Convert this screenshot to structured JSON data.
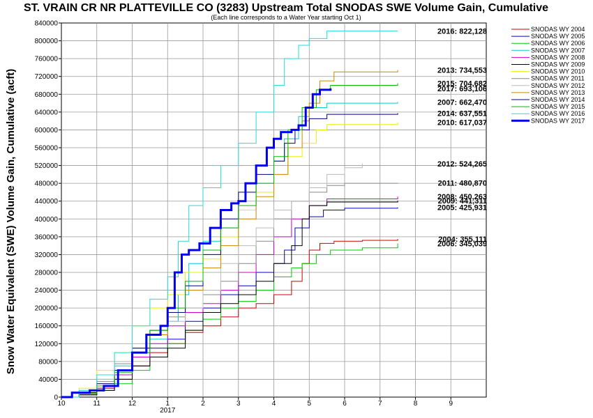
{
  "chart_data": {
    "type": "line",
    "title": "ST. VRAIN CR NR PLATTEVILLE CO (3283) Upstream Total SNODAS SWE Volume Gain, Cumulative",
    "subtitle": "(Each line corresponds to a Water Year starting Oct 1)",
    "ylabel": "Snow Water Equivalent (SWE) Volume Gain, Cumulative (acft)",
    "xlabel": "",
    "x_tick_labels": [
      "10",
      "11",
      "12",
      "1",
      "2",
      "3",
      "4",
      "5",
      "6",
      "7",
      "8",
      "9"
    ],
    "x_year_label": "2017",
    "ylim": [
      0,
      840000
    ],
    "y_ticks": [
      "0",
      "40000",
      "80000",
      "120000",
      "160000",
      "200000",
      "240000",
      "280000",
      "320000",
      "360000",
      "400000",
      "440000",
      "480000",
      "520000",
      "560000",
      "600000",
      "640000",
      "680000",
      "720000",
      "760000",
      "800000",
      "840000"
    ],
    "grid": "horizontal",
    "legend_position": "right",
    "series": [
      {
        "name": "SNODAS WY 2004",
        "color": "#cc0000",
        "width": 1,
        "end_label": "2004: 355,111",
        "points": [
          [
            0.0,
            0
          ],
          [
            0.5,
            5000
          ],
          [
            1.0,
            20000
          ],
          [
            1.5,
            40000
          ],
          [
            2.0,
            70000
          ],
          [
            2.5,
            100000
          ],
          [
            3.0,
            120000
          ],
          [
            3.5,
            145000
          ],
          [
            4.0,
            160000
          ],
          [
            4.5,
            180000
          ],
          [
            5.0,
            200000
          ],
          [
            5.5,
            210000
          ],
          [
            6.0,
            230000
          ],
          [
            6.5,
            260000
          ],
          [
            6.8,
            300000
          ],
          [
            7.0,
            330000
          ],
          [
            7.3,
            345000
          ],
          [
            7.7,
            350000
          ],
          [
            8.5,
            352000
          ],
          [
            9.5,
            355111
          ]
        ]
      },
      {
        "name": "SNODAS WY 2005",
        "color": "#0000cc",
        "width": 1,
        "end_label": "2005: 425,931",
        "points": [
          [
            0.0,
            0
          ],
          [
            0.5,
            10000
          ],
          [
            1.0,
            25000
          ],
          [
            1.5,
            50000
          ],
          [
            2.0,
            90000
          ],
          [
            2.5,
            110000
          ],
          [
            3.0,
            130000
          ],
          [
            3.5,
            170000
          ],
          [
            4.0,
            200000
          ],
          [
            4.5,
            230000
          ],
          [
            5.0,
            250000
          ],
          [
            5.5,
            280000
          ],
          [
            6.0,
            300000
          ],
          [
            6.3,
            330000
          ],
          [
            6.6,
            380000
          ],
          [
            7.0,
            405000
          ],
          [
            7.4,
            420000
          ],
          [
            8.0,
            424000
          ],
          [
            9.5,
            425931
          ]
        ]
      },
      {
        "name": "SNODAS WY 2006",
        "color": "#00cc00",
        "width": 1,
        "end_label": "2006: 345,039",
        "points": [
          [
            0.0,
            0
          ],
          [
            0.5,
            5000
          ],
          [
            1.0,
            15000
          ],
          [
            1.5,
            30000
          ],
          [
            2.0,
            60000
          ],
          [
            2.5,
            90000
          ],
          [
            3.0,
            120000
          ],
          [
            3.5,
            150000
          ],
          [
            4.0,
            175000
          ],
          [
            4.5,
            200000
          ],
          [
            5.0,
            215000
          ],
          [
            5.5,
            240000
          ],
          [
            6.0,
            270000
          ],
          [
            6.5,
            290000
          ],
          [
            6.8,
            300000
          ],
          [
            7.2,
            320000
          ],
          [
            7.6,
            330000
          ],
          [
            8.5,
            335000
          ],
          [
            9.5,
            345039
          ]
        ]
      },
      {
        "name": "SNODAS WY 2007",
        "color": "#00cccc",
        "width": 1,
        "end_label": "2007: 662,470",
        "points": [
          [
            0.0,
            0
          ],
          [
            0.5,
            15000
          ],
          [
            1.0,
            40000
          ],
          [
            1.5,
            70000
          ],
          [
            2.0,
            100000
          ],
          [
            2.5,
            130000
          ],
          [
            3.0,
            170000
          ],
          [
            3.3,
            230000
          ],
          [
            3.6,
            300000
          ],
          [
            4.0,
            350000
          ],
          [
            4.5,
            380000
          ],
          [
            5.0,
            420000
          ],
          [
            5.5,
            480000
          ],
          [
            6.0,
            530000
          ],
          [
            6.3,
            580000
          ],
          [
            6.7,
            630000
          ],
          [
            7.0,
            650000
          ],
          [
            7.5,
            660000
          ],
          [
            9.5,
            662470
          ]
        ]
      },
      {
        "name": "SNODAS WY 2008",
        "color": "#cc00cc",
        "width": 1,
        "end_label": "2008: 450,263",
        "points": [
          [
            0.0,
            0
          ],
          [
            0.5,
            8000
          ],
          [
            1.0,
            20000
          ],
          [
            1.5,
            50000
          ],
          [
            2.0,
            90000
          ],
          [
            2.5,
            120000
          ],
          [
            3.0,
            160000
          ],
          [
            3.5,
            190000
          ],
          [
            4.0,
            210000
          ],
          [
            4.5,
            240000
          ],
          [
            5.0,
            280000
          ],
          [
            5.5,
            320000
          ],
          [
            6.0,
            360000
          ],
          [
            6.5,
            400000
          ],
          [
            7.0,
            430000
          ],
          [
            7.5,
            445000
          ],
          [
            9.5,
            450263
          ]
        ]
      },
      {
        "name": "SNODAS WY 2009",
        "color": "#000000",
        "width": 1,
        "end_label": "2009: 441,311",
        "points": [
          [
            0.0,
            0
          ],
          [
            0.5,
            5000
          ],
          [
            1.0,
            15000
          ],
          [
            1.5,
            40000
          ],
          [
            2.0,
            70000
          ],
          [
            2.5,
            90000
          ],
          [
            3.0,
            110000
          ],
          [
            3.5,
            150000
          ],
          [
            4.0,
            190000
          ],
          [
            4.5,
            210000
          ],
          [
            5.0,
            230000
          ],
          [
            5.5,
            260000
          ],
          [
            6.0,
            300000
          ],
          [
            6.5,
            340000
          ],
          [
            6.8,
            400000
          ],
          [
            7.0,
            430000
          ],
          [
            7.5,
            438000
          ],
          [
            9.5,
            441311
          ]
        ]
      },
      {
        "name": "SNODAS WY 2010",
        "color": "#eeee00",
        "width": 1,
        "end_label": "2010: 617,037",
        "points": [
          [
            0.0,
            0
          ],
          [
            0.5,
            20000
          ],
          [
            1.0,
            60000
          ],
          [
            1.5,
            100000
          ],
          [
            2.0,
            160000
          ],
          [
            2.5,
            200000
          ],
          [
            3.0,
            230000
          ],
          [
            3.5,
            280000
          ],
          [
            4.0,
            310000
          ],
          [
            4.5,
            360000
          ],
          [
            5.0,
            420000
          ],
          [
            5.5,
            460000
          ],
          [
            6.0,
            500000
          ],
          [
            6.4,
            540000
          ],
          [
            6.8,
            570000
          ],
          [
            7.2,
            600000
          ],
          [
            7.5,
            612000
          ],
          [
            9.5,
            617037
          ]
        ]
      },
      {
        "name": "SNODAS WY 2011",
        "color": "#888888",
        "width": 1,
        "end_label": "2011: 480,870",
        "points": [
          [
            0.0,
            0
          ],
          [
            0.5,
            10000
          ],
          [
            1.0,
            35000
          ],
          [
            1.5,
            75000
          ],
          [
            2.0,
            110000
          ],
          [
            2.5,
            150000
          ],
          [
            3.0,
            180000
          ],
          [
            3.5,
            200000
          ],
          [
            4.0,
            230000
          ],
          [
            4.5,
            260000
          ],
          [
            5.0,
            300000
          ],
          [
            5.5,
            350000
          ],
          [
            6.0,
            400000
          ],
          [
            6.5,
            440000
          ],
          [
            7.0,
            460000
          ],
          [
            7.5,
            475000
          ],
          [
            8.0,
            480000
          ],
          [
            9.5,
            480870
          ]
        ]
      },
      {
        "name": "SNODAS WY 2012",
        "color": "#bbbbbb",
        "width": 1,
        "end_label": "2012: 524,265",
        "points": [
          [
            0.0,
            0
          ],
          [
            0.5,
            15000
          ],
          [
            1.0,
            40000
          ],
          [
            1.5,
            80000
          ],
          [
            2.0,
            110000
          ],
          [
            2.5,
            140000
          ],
          [
            3.0,
            170000
          ],
          [
            3.5,
            200000
          ],
          [
            4.0,
            240000
          ],
          [
            4.5,
            300000
          ],
          [
            5.0,
            340000
          ],
          [
            5.5,
            380000
          ],
          [
            6.0,
            420000
          ],
          [
            6.5,
            440000
          ],
          [
            7.0,
            470000
          ],
          [
            7.5,
            500000
          ],
          [
            8.0,
            515000
          ],
          [
            8.5,
            524265
          ]
        ]
      },
      {
        "name": "SNODAS WY 2013",
        "color": "#cc8800",
        "width": 1,
        "end_label": "2013: 734,553",
        "points": [
          [
            0.0,
            0
          ],
          [
            0.5,
            10000
          ],
          [
            1.0,
            30000
          ],
          [
            1.5,
            60000
          ],
          [
            2.0,
            100000
          ],
          [
            2.5,
            140000
          ],
          [
            3.0,
            190000
          ],
          [
            3.5,
            240000
          ],
          [
            4.0,
            290000
          ],
          [
            4.5,
            340000
          ],
          [
            5.0,
            400000
          ],
          [
            5.5,
            450000
          ],
          [
            6.0,
            500000
          ],
          [
            6.4,
            560000
          ],
          [
            6.8,
            620000
          ],
          [
            7.0,
            660000
          ],
          [
            7.3,
            710000
          ],
          [
            7.7,
            730000
          ],
          [
            9.5,
            734553
          ]
        ]
      },
      {
        "name": "SNODAS WY 2014",
        "color": "#00008b",
        "width": 1,
        "end_label": "2014: 637,551",
        "points": [
          [
            0.0,
            0
          ],
          [
            0.5,
            10000
          ],
          [
            1.0,
            30000
          ],
          [
            1.5,
            60000
          ],
          [
            2.0,
            110000
          ],
          [
            2.5,
            150000
          ],
          [
            3.0,
            190000
          ],
          [
            3.5,
            250000
          ],
          [
            4.0,
            320000
          ],
          [
            4.5,
            400000
          ],
          [
            5.0,
            460000
          ],
          [
            5.5,
            500000
          ],
          [
            6.0,
            530000
          ],
          [
            6.3,
            570000
          ],
          [
            6.6,
            600000
          ],
          [
            7.0,
            625000
          ],
          [
            7.5,
            635000
          ],
          [
            9.5,
            637551
          ]
        ]
      },
      {
        "name": "SNODAS WY 2015",
        "color": "#00bb00",
        "width": 1,
        "end_label": "2015: 704,682",
        "points": [
          [
            0.0,
            0
          ],
          [
            0.5,
            8000
          ],
          [
            1.0,
            25000
          ],
          [
            1.5,
            55000
          ],
          [
            2.0,
            100000
          ],
          [
            2.5,
            150000
          ],
          [
            3.0,
            200000
          ],
          [
            3.5,
            260000
          ],
          [
            4.0,
            330000
          ],
          [
            4.5,
            380000
          ],
          [
            5.0,
            430000
          ],
          [
            5.5,
            480000
          ],
          [
            6.0,
            540000
          ],
          [
            6.4,
            600000
          ],
          [
            6.8,
            650000
          ],
          [
            7.2,
            690000
          ],
          [
            7.6,
            700000
          ],
          [
            9.5,
            704682
          ]
        ]
      },
      {
        "name": "SNODAS WY 2016",
        "color": "#22dddd",
        "width": 1,
        "end_label": "2016: 822,128",
        "points": [
          [
            0.0,
            0
          ],
          [
            0.5,
            15000
          ],
          [
            1.0,
            50000
          ],
          [
            1.5,
            100000
          ],
          [
            2.0,
            160000
          ],
          [
            2.5,
            220000
          ],
          [
            3.0,
            270000
          ],
          [
            3.3,
            350000
          ],
          [
            3.6,
            430000
          ],
          [
            4.0,
            470000
          ],
          [
            4.5,
            520000
          ],
          [
            5.0,
            570000
          ],
          [
            5.5,
            640000
          ],
          [
            6.0,
            700000
          ],
          [
            6.3,
            760000
          ],
          [
            6.7,
            790000
          ],
          [
            7.0,
            805000
          ],
          [
            7.5,
            822128
          ],
          [
            9.5,
            822128
          ]
        ]
      },
      {
        "name": "SNODAS WY 2017",
        "color": "#0000ee",
        "width": 3,
        "end_label": "2017: 693,106",
        "points": [
          [
            0.0,
            0
          ],
          [
            0.3,
            10000
          ],
          [
            0.8,
            15000
          ],
          [
            1.2,
            25000
          ],
          [
            1.6,
            60000
          ],
          [
            2.0,
            100000
          ],
          [
            2.4,
            140000
          ],
          [
            2.8,
            160000
          ],
          [
            3.0,
            200000
          ],
          [
            3.2,
            280000
          ],
          [
            3.4,
            320000
          ],
          [
            3.6,
            330000
          ],
          [
            3.9,
            345000
          ],
          [
            4.2,
            380000
          ],
          [
            4.5,
            420000
          ],
          [
            4.8,
            435000
          ],
          [
            5.0,
            440000
          ],
          [
            5.2,
            480000
          ],
          [
            5.5,
            520000
          ],
          [
            5.8,
            560000
          ],
          [
            6.0,
            580000
          ],
          [
            6.2,
            595000
          ],
          [
            6.5,
            600000
          ],
          [
            6.7,
            610000
          ],
          [
            6.9,
            650000
          ],
          [
            7.1,
            680000
          ],
          [
            7.3,
            690000
          ],
          [
            7.6,
            693106
          ]
        ]
      }
    ]
  }
}
